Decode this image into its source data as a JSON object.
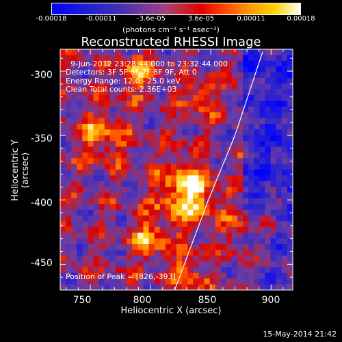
{
  "colorbar": {
    "ticks": [
      "-0.00018",
      "-0.00011",
      "-3.6e-05",
      "3.6e-05",
      "0.00011",
      "0.00018"
    ],
    "unit": "(photons cm⁻² s⁻¹ asec⁻²)"
  },
  "chart_data": {
    "type": "heatmap",
    "title": "Reconstructed RHESSI Image",
    "xlabel": "Heliocentric X (arcsec)",
    "ylabel": "Heliocentric Y (arcsec)",
    "xlim": [
      725,
      918
    ],
    "ylim": [
      -470,
      -283
    ],
    "xticks": [
      "750",
      "800",
      "850",
      "900"
    ],
    "yticks": [
      "-300",
      "-350",
      "-400",
      "-450"
    ],
    "colorbar_range": [
      -0.00018,
      0.00018
    ],
    "limb_arc": [
      [
        820,
        -470
      ],
      [
        848,
        -400
      ],
      [
        870,
        -350
      ],
      [
        893,
        -285
      ]
    ],
    "annotations": {
      "time": "9-Jun-2012 23:28:44.000 to 23:32:44.000",
      "detectors": "Detectors: 3F 5F 6F 7F 8F 9F, Att 0",
      "energy": "Energy Range: 12.0 - 25.0 keV",
      "method": "Clean    Total counts: 2.36E+03",
      "peak": "Position of Peak = [826,-393]"
    }
  },
  "footer": {
    "timestamp": "15-May-2014 21:42"
  }
}
